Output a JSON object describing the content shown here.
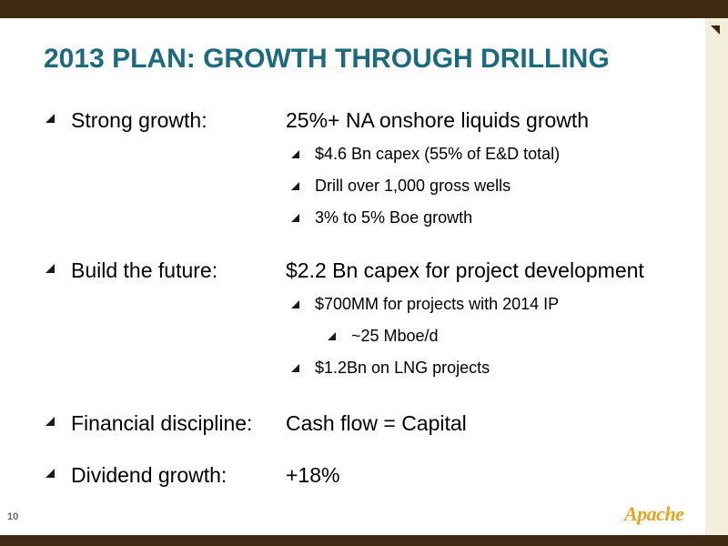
{
  "slide": {
    "title": "2013 PLAN: GROWTH THROUGH DRILLING",
    "page_number": "10",
    "logo_text": "Apache"
  },
  "items": [
    {
      "label": "Strong growth:",
      "value": "25%+ NA onshore liquids growth",
      "sub": [
        "$4.6 Bn capex (55% of E&D total)",
        "Drill over 1,000 gross wells",
        "3% to 5% Boe growth"
      ]
    },
    {
      "label": "Build the future:",
      "value": "$2.2 Bn capex for project development",
      "sub": [
        "$700MM for projects with 2014 IP",
        "$1.2Bn on LNG projects"
      ],
      "subsub": [
        "~25 Mboe/d"
      ]
    },
    {
      "label": "Financial discipline:",
      "value": "Cash flow = Capital"
    },
    {
      "label": "Dividend growth:",
      "value": "+18%"
    }
  ],
  "colors": {
    "title": "#1d6a7d",
    "band": "#3e2a12",
    "panel": "#f3efdc",
    "logo": "#e0a820"
  }
}
